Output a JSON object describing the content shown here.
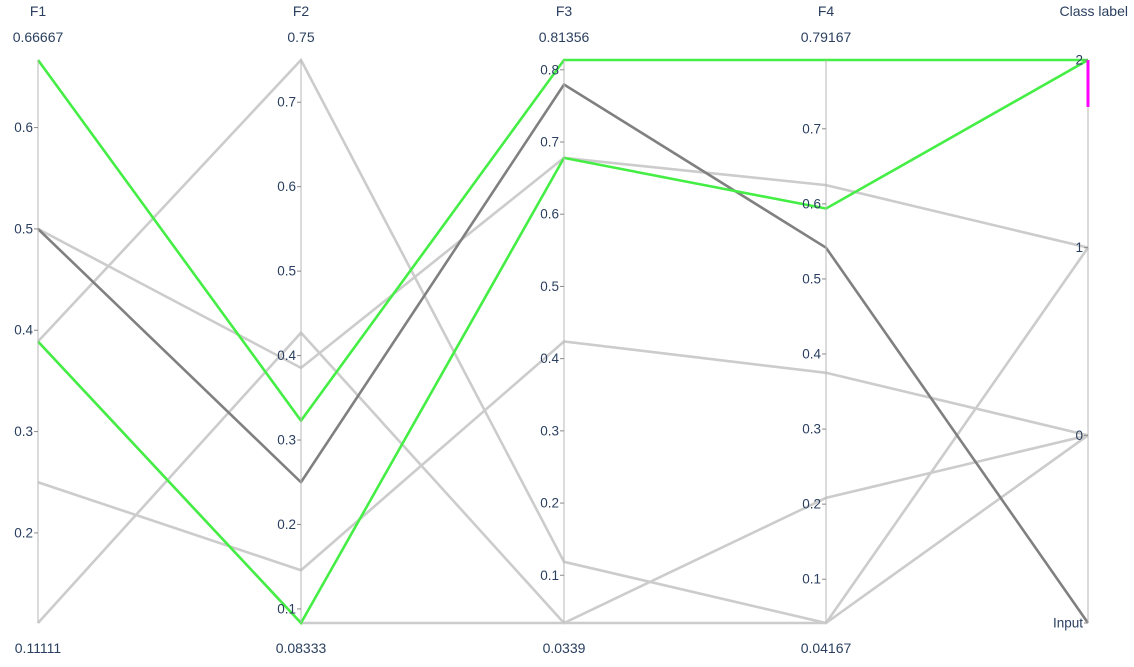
{
  "chart_data": {
    "type": "parallel_coordinates",
    "axes": [
      {
        "label": "F1",
        "min": 0.11111,
        "max": 0.66667,
        "min_label": "0.11111",
        "max_label": "0.66667",
        "ticks": [
          0.2,
          0.3,
          0.4,
          0.5,
          0.6
        ],
        "tick_labels": [
          "0.2",
          "0.3",
          "0.4",
          "0.5",
          "0.6"
        ]
      },
      {
        "label": "F2",
        "min": 0.08333,
        "max": 0.75,
        "min_label": "0.08333",
        "max_label": "0.75",
        "ticks": [
          0.1,
          0.2,
          0.3,
          0.4,
          0.5,
          0.6,
          0.7
        ],
        "tick_labels": [
          "0.1",
          "0.2",
          "0.3",
          "0.4",
          "0.5",
          "0.6",
          "0.7"
        ]
      },
      {
        "label": "F3",
        "min": 0.0339,
        "max": 0.81356,
        "min_label": "0.0339",
        "max_label": "0.81356",
        "ticks": [
          0.1,
          0.2,
          0.3,
          0.4,
          0.5,
          0.6,
          0.7,
          0.8
        ],
        "tick_labels": [
          "0.1",
          "0.2",
          "0.3",
          "0.4",
          "0.5",
          "0.6",
          "0.7",
          "0.8"
        ]
      },
      {
        "label": "F4",
        "min": 0.04167,
        "max": 0.79167,
        "min_label": "0.04167",
        "max_label": "0.79167",
        "ticks": [
          0.1,
          0.2,
          0.3,
          0.4,
          0.5,
          0.6,
          0.7
        ],
        "tick_labels": [
          "0.1",
          "0.2",
          "0.3",
          "0.4",
          "0.5",
          "0.6",
          "0.7"
        ]
      },
      {
        "label": "Class label",
        "min": -1,
        "max": 2,
        "min_label": "",
        "max_label": "",
        "ticks": [
          -1,
          0,
          1,
          2
        ],
        "tick_labels": [
          "Input",
          "0",
          "1",
          "2"
        ],
        "constraint_range": [
          1.75,
          2
        ],
        "constraint_color": "#ff00ff"
      }
    ],
    "rows": [
      {
        "values": [
          0.38889,
          0.08333,
          0.67797,
          0.59375,
          2
        ],
        "color": "#44ee44",
        "highlight": true
      },
      {
        "values": [
          0.66667,
          0.32292,
          0.81356,
          0.79167,
          2
        ],
        "color": "#44ee44",
        "highlight": true
      },
      {
        "values": [
          0.5,
          0.25,
          0.77966,
          0.54167,
          -1
        ],
        "color": "#808080",
        "highlight": false
      },
      {
        "values": [
          0.5,
          0.38542,
          0.67797,
          0.625,
          1
        ],
        "color": "#cccccc",
        "highlight": false
      },
      {
        "values": [
          0.38889,
          0.75,
          0.11864,
          0.04167,
          1
        ],
        "color": "#cccccc",
        "highlight": false
      },
      {
        "values": [
          0.25,
          0.14583,
          0.42373,
          0.375,
          0
        ],
        "color": "#cccccc",
        "highlight": false
      },
      {
        "values": [
          0.11111,
          0.42708,
          0.0339,
          0.20833,
          0
        ],
        "color": "#cccccc",
        "highlight": false
      },
      {
        "values": [
          0.38889,
          0.08333,
          0.0339,
          0.04167,
          0
        ],
        "color": "#cccccc",
        "highlight": false
      }
    ]
  }
}
